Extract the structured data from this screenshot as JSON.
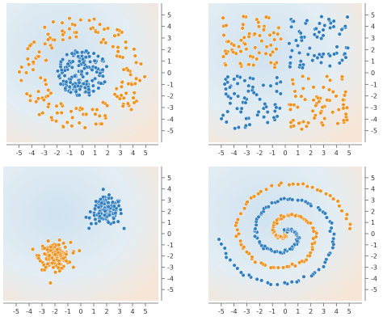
{
  "colors": {
    "series_a": "#2f7ec0",
    "series_b": "#f0921e",
    "background_blue": "#cfe2f0",
    "background_orange": "#f6e6d8",
    "axis": "#666666",
    "tick_label": "#333333"
  },
  "chart_data": [
    {
      "type": "scatter",
      "pattern": "circle",
      "title": "",
      "xlabel": "",
      "ylabel": "",
      "xlim": [
        -6,
        6
      ],
      "ylim": [
        -6,
        6
      ],
      "x_ticks": [
        -5,
        -4,
        -3,
        -2,
        -1,
        0,
        1,
        2,
        3,
        4,
        5
      ],
      "y_ticks": [
        5,
        4,
        3,
        2,
        1,
        0,
        -1,
        -2,
        -3,
        -4,
        -5
      ],
      "grid": false,
      "background": "heatmap",
      "series": [
        {
          "points": 160,
          "color": "#2f7ec0",
          "shape": "disk",
          "center": [
            0,
            0
          ],
          "radius_max": 2.0
        },
        {
          "points": 160,
          "color": "#f0921e",
          "shape": "ring",
          "center": [
            0,
            0
          ],
          "radius_min": 3.0,
          "radius_max": 5.0
        }
      ]
    },
    {
      "type": "scatter",
      "pattern": "xor",
      "title": "",
      "xlabel": "",
      "ylabel": "",
      "xlim": [
        -6,
        6
      ],
      "ylim": [
        -6,
        6
      ],
      "x_ticks": [
        -5,
        -4,
        -3,
        -2,
        -1,
        0,
        1,
        2,
        3,
        4,
        5
      ],
      "y_ticks": [
        5,
        4,
        3,
        2,
        1,
        0,
        -1,
        -2,
        -3,
        -4,
        -5
      ],
      "grid": false,
      "background": "heatmap",
      "series": [
        {
          "points": 140,
          "color": "#2f7ec0",
          "quadrants": [
            "top-right",
            "bottom-left"
          ],
          "range": [
            0.3,
            5
          ]
        },
        {
          "points": 140,
          "color": "#f0921e",
          "quadrants": [
            "top-left",
            "bottom-right"
          ],
          "range": [
            0.3,
            5
          ]
        }
      ]
    },
    {
      "type": "scatter",
      "pattern": "gaussian",
      "title": "",
      "xlabel": "",
      "ylabel": "",
      "xlim": [
        -6,
        6
      ],
      "ylim": [
        -6,
        6
      ],
      "x_ticks": [
        -5,
        -4,
        -3,
        -2,
        -1,
        0,
        1,
        2,
        3,
        4,
        5
      ],
      "y_ticks": [
        5,
        4,
        3,
        2,
        1,
        0,
        -1,
        -2,
        -3,
        -4,
        -5
      ],
      "grid": false,
      "background": "heatmap",
      "series": [
        {
          "points": 150,
          "color": "#2f7ec0",
          "center": [
            2,
            2
          ],
          "spread": 0.6
        },
        {
          "points": 150,
          "color": "#f0921e",
          "center": [
            -2,
            -2
          ],
          "spread": 0.6
        }
      ]
    },
    {
      "type": "scatter",
      "pattern": "spiral",
      "title": "",
      "xlabel": "",
      "ylabel": "",
      "xlim": [
        -6,
        6
      ],
      "ylim": [
        -6,
        6
      ],
      "x_ticks": [
        -5,
        -4,
        -3,
        -2,
        -1,
        0,
        1,
        2,
        3,
        4,
        5
      ],
      "y_ticks": [
        5,
        4,
        3,
        2,
        1,
        0,
        -1,
        -2,
        -3,
        -4,
        -5
      ],
      "grid": false,
      "background": "heatmap",
      "series": [
        {
          "points": 130,
          "color": "#2f7ec0",
          "phase": 0.0,
          "radius_max": 5.0,
          "turns": 1.75
        },
        {
          "points": 130,
          "color": "#f0921e",
          "phase": 3.1416,
          "radius_max": 5.0,
          "turns": 1.75
        }
      ]
    }
  ]
}
